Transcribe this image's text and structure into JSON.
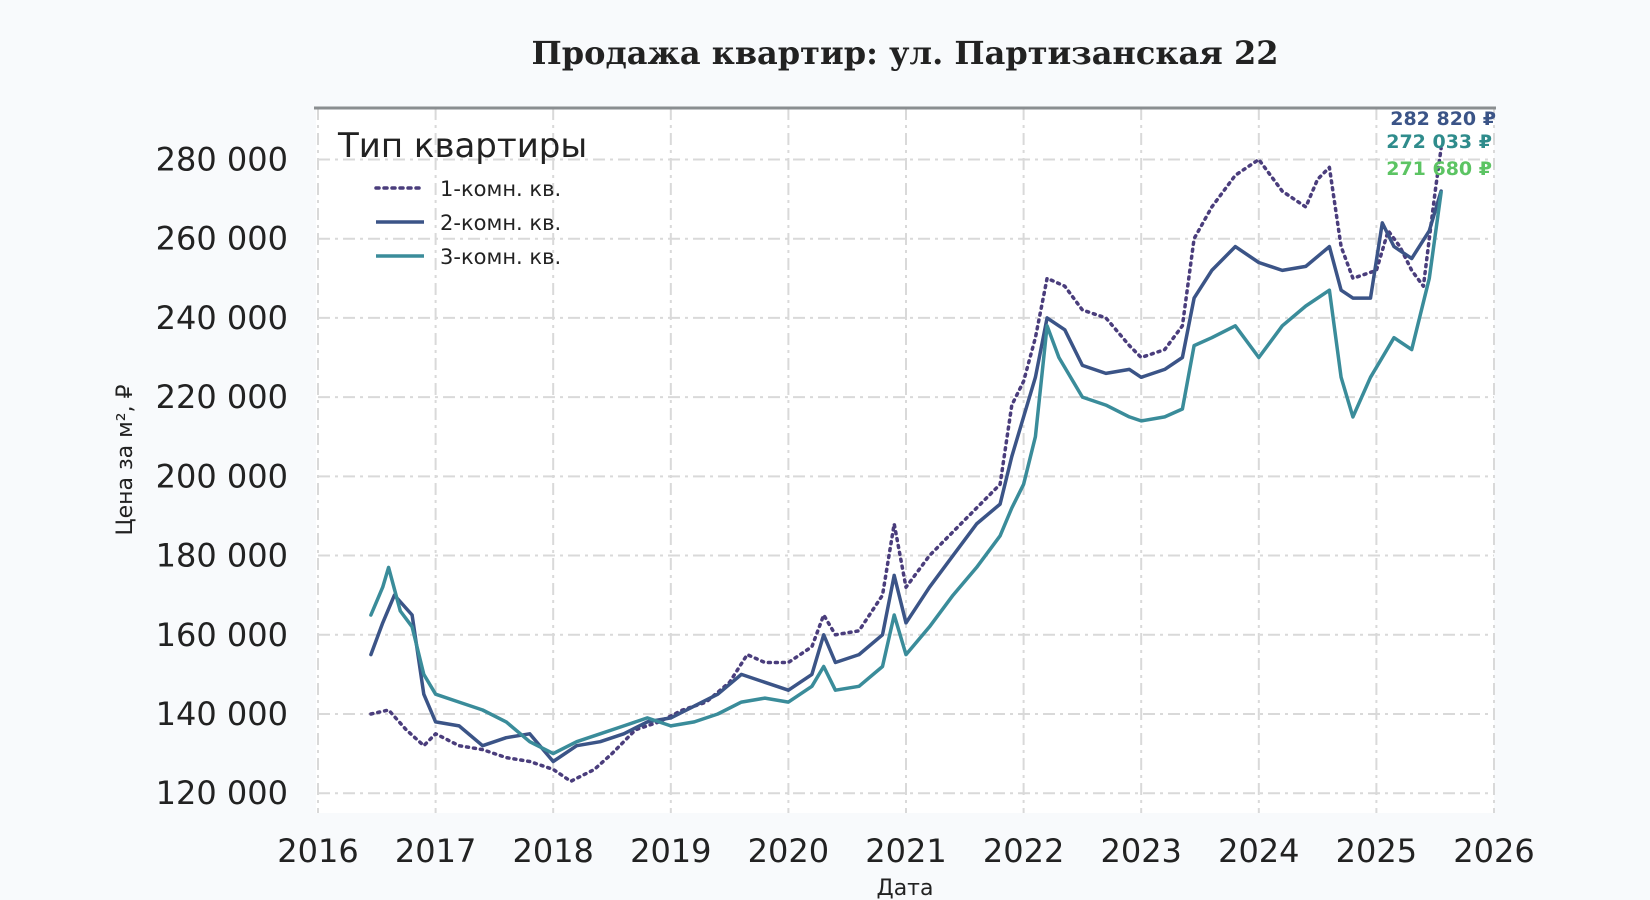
{
  "chart_data": {
    "type": "line",
    "title": "Продажа квартир: ул. Партизанская 22",
    "xlabel": "Дата",
    "ylabel": "Цена за м², ₽",
    "xlim": [
      2016,
      2026
    ],
    "ylim": [
      115000,
      293000
    ],
    "x_ticks": [
      "2016",
      "2017",
      "2018",
      "2019",
      "2020",
      "2021",
      "2022",
      "2023",
      "2024",
      "2025",
      "2026"
    ],
    "y_ticks": [
      "120 000",
      "140 000",
      "160 000",
      "180 000",
      "200 000",
      "220 000",
      "240 000",
      "260 000",
      "280 000"
    ],
    "grid": true,
    "legend": {
      "title": "Тип квартиры",
      "placement": "top-left",
      "entries": [
        "1-комн. кв.",
        "2-комн. кв.",
        "3-комн. кв."
      ]
    },
    "end_labels": [
      {
        "text": "282 820 ₽",
        "color": "#3b5487"
      },
      {
        "text": "272 033 ₽",
        "color": "#2f8c8c"
      },
      {
        "text": "271 680 ₽",
        "color": "#5cc463"
      }
    ],
    "series": [
      {
        "name": "1-комн. кв.",
        "color": "#4a3d7c",
        "style": "dotted",
        "x": [
          2016.45,
          2016.6,
          2016.75,
          2016.9,
          2017.0,
          2017.2,
          2017.4,
          2017.6,
          2017.8,
          2018.0,
          2018.15,
          2018.35,
          2018.5,
          2018.7,
          2018.9,
          2019.1,
          2019.3,
          2019.5,
          2019.65,
          2019.8,
          2020.0,
          2020.2,
          2020.3,
          2020.4,
          2020.6,
          2020.8,
          2020.9,
          2021.0,
          2021.2,
          2021.4,
          2021.6,
          2021.8,
          2021.9,
          2022.0,
          2022.1,
          2022.2,
          2022.35,
          2022.5,
          2022.7,
          2022.9,
          2023.0,
          2023.2,
          2023.35,
          2023.45,
          2023.6,
          2023.8,
          2024.0,
          2024.2,
          2024.4,
          2024.5,
          2024.6,
          2024.7,
          2024.8,
          2025.0,
          2025.1,
          2025.2,
          2025.3,
          2025.4,
          2025.5,
          2025.55
        ],
        "y": [
          140000,
          141000,
          136000,
          132000,
          135000,
          132000,
          131000,
          129000,
          128000,
          126000,
          123000,
          126000,
          130000,
          136000,
          138000,
          141000,
          143000,
          148000,
          155000,
          153000,
          153000,
          157000,
          165000,
          160000,
          161000,
          170000,
          188000,
          172000,
          180000,
          186000,
          192000,
          198000,
          218000,
          224000,
          235000,
          250000,
          248000,
          242000,
          240000,
          233000,
          230000,
          232000,
          238000,
          260000,
          268000,
          276000,
          280000,
          272000,
          268000,
          275000,
          278000,
          258000,
          250000,
          252000,
          262000,
          258000,
          252000,
          248000,
          272000,
          282820
        ]
      },
      {
        "name": "2-комн. кв.",
        "color": "#3b5487",
        "style": "solid",
        "x": [
          2016.45,
          2016.55,
          2016.65,
          2016.8,
          2016.9,
          2017.0,
          2017.2,
          2017.4,
          2017.6,
          2017.8,
          2018.0,
          2018.2,
          2018.4,
          2018.6,
          2018.8,
          2019.0,
          2019.2,
          2019.4,
          2019.6,
          2019.8,
          2020.0,
          2020.2,
          2020.3,
          2020.4,
          2020.6,
          2020.8,
          2020.9,
          2021.0,
          2021.2,
          2021.4,
          2021.6,
          2021.8,
          2021.9,
          2022.0,
          2022.1,
          2022.2,
          2022.35,
          2022.5,
          2022.7,
          2022.9,
          2023.0,
          2023.2,
          2023.35,
          2023.45,
          2023.6,
          2023.8,
          2024.0,
          2024.2,
          2024.4,
          2024.6,
          2024.7,
          2024.8,
          2024.95,
          2025.05,
          2025.15,
          2025.3,
          2025.45,
          2025.55
        ],
        "y": [
          155000,
          163000,
          170000,
          165000,
          145000,
          138000,
          137000,
          132000,
          134000,
          135000,
          128000,
          132000,
          133000,
          135000,
          138000,
          139000,
          142000,
          145000,
          150000,
          148000,
          146000,
          150000,
          160000,
          153000,
          155000,
          160000,
          175000,
          163000,
          172000,
          180000,
          188000,
          193000,
          205000,
          215000,
          225000,
          240000,
          237000,
          228000,
          226000,
          227000,
          225000,
          227000,
          230000,
          245000,
          252000,
          258000,
          254000,
          252000,
          253000,
          258000,
          247000,
          245000,
          245000,
          264000,
          258000,
          255000,
          262000,
          272033
        ]
      },
      {
        "name": "3-комн. кв.",
        "color": "#3a8c9a",
        "style": "solid",
        "x": [
          2016.45,
          2016.55,
          2016.6,
          2016.7,
          2016.8,
          2016.9,
          2017.0,
          2017.2,
          2017.4,
          2017.6,
          2017.8,
          2018.0,
          2018.2,
          2018.4,
          2018.6,
          2018.8,
          2019.0,
          2019.2,
          2019.4,
          2019.6,
          2019.8,
          2020.0,
          2020.2,
          2020.3,
          2020.4,
          2020.6,
          2020.8,
          2020.9,
          2021.0,
          2021.2,
          2021.4,
          2021.6,
          2021.8,
          2021.9,
          2022.0,
          2022.1,
          2022.2,
          2022.3,
          2022.5,
          2022.7,
          2022.9,
          2023.0,
          2023.2,
          2023.35,
          2023.45,
          2023.6,
          2023.8,
          2024.0,
          2024.2,
          2024.4,
          2024.6,
          2024.7,
          2024.8,
          2024.95,
          2025.05,
          2025.15,
          2025.3,
          2025.45,
          2025.55
        ],
        "y": [
          165000,
          172000,
          177000,
          166000,
          162000,
          150000,
          145000,
          143000,
          141000,
          138000,
          133000,
          130000,
          133000,
          135000,
          137000,
          139000,
          137000,
          138000,
          140000,
          143000,
          144000,
          143000,
          147000,
          152000,
          146000,
          147000,
          152000,
          165000,
          155000,
          162000,
          170000,
          177000,
          185000,
          192000,
          198000,
          210000,
          238000,
          230000,
          220000,
          218000,
          215000,
          214000,
          215000,
          217000,
          233000,
          235000,
          238000,
          230000,
          238000,
          243000,
          247000,
          225000,
          215000,
          225000,
          230000,
          235000,
          232000,
          250000,
          271680
        ]
      }
    ]
  }
}
